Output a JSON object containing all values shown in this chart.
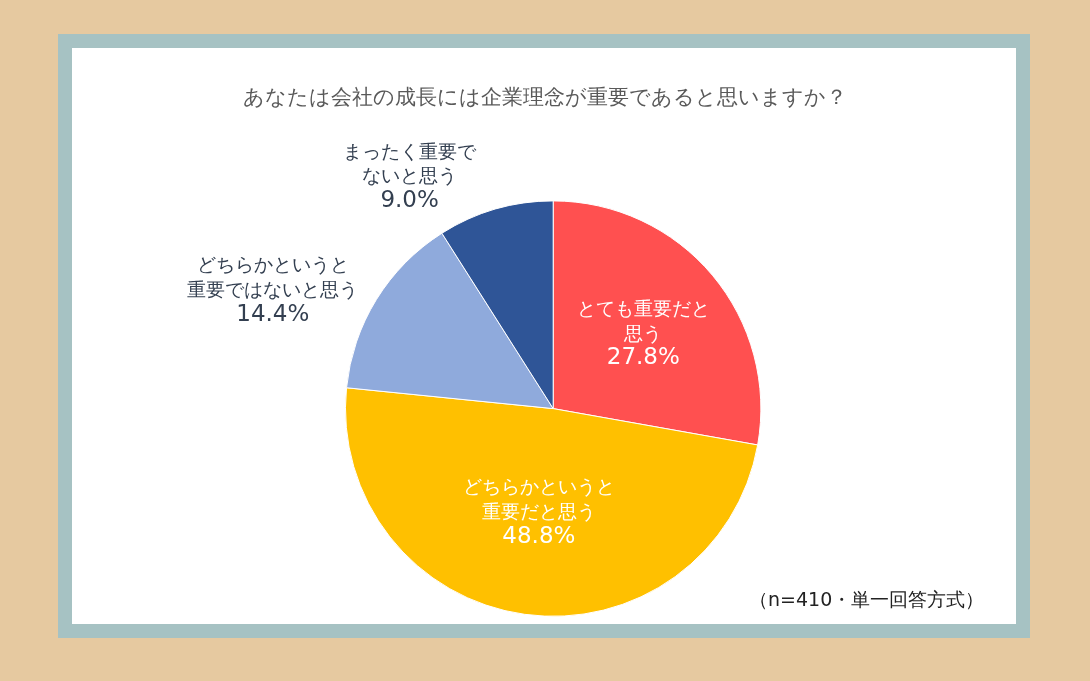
{
  "chart_data": {
    "type": "pie",
    "title": "あなたは会社の成長には企業理念が重要であると思いますか？",
    "categories": [
      "とても重要だと思う",
      "どちらかというと重要だと思う",
      "どちらかというと重要ではないと思う",
      "まったく重要でないと思う"
    ],
    "values": [
      27.8,
      48.8,
      14.4,
      9.0
    ],
    "value_labels": [
      "27.8%",
      "48.8%",
      "14.4%",
      "9.0%"
    ],
    "colors": [
      "#ff5050",
      "#ffc000",
      "#8faadc",
      "#2f5597"
    ],
    "annotations": [
      "（n=410・単一回答方式）"
    ]
  }
}
